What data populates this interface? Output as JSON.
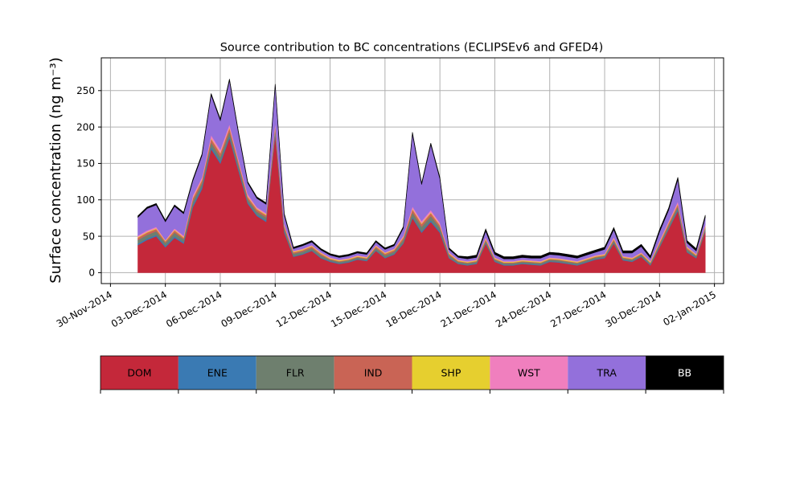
{
  "chart_data": {
    "type": "area",
    "stacked": true,
    "title": "Source contribution to BC concentrations (ECLIPSEv6 and GFED4)",
    "xlabel": "",
    "ylabel": "Surface concentration (ng m⁻³)",
    "ylim": [
      -15,
      295
    ],
    "xlim": [
      "2014-11-29T12:00",
      "2015-01-02T12:00"
    ],
    "grid": true,
    "yticks": [
      0,
      50,
      100,
      150,
      200,
      250
    ],
    "xticks": [
      "30-Nov-2014",
      "03-Dec-2014",
      "06-Dec-2014",
      "09-Dec-2014",
      "12-Dec-2014",
      "15-Dec-2014",
      "18-Dec-2014",
      "21-Dec-2014",
      "24-Dec-2014",
      "27-Dec-2014",
      "30-Dec-2014",
      "02-Jan-2015"
    ],
    "x": [
      "2014-12-01T12:00",
      "2014-12-02T00:00",
      "2014-12-02T12:00",
      "2014-12-03T00:00",
      "2014-12-03T12:00",
      "2014-12-04T00:00",
      "2014-12-04T12:00",
      "2014-12-05T00:00",
      "2014-12-05T12:00",
      "2014-12-06T00:00",
      "2014-12-06T12:00",
      "2014-12-07T00:00",
      "2014-12-07T12:00",
      "2014-12-08T00:00",
      "2014-12-08T12:00",
      "2014-12-09T00:00",
      "2014-12-09T12:00",
      "2014-12-10T00:00",
      "2014-12-10T12:00",
      "2014-12-11T00:00",
      "2014-12-11T12:00",
      "2014-12-12T00:00",
      "2014-12-12T12:00",
      "2014-12-13T00:00",
      "2014-12-13T12:00",
      "2014-12-14T00:00",
      "2014-12-14T12:00",
      "2014-12-15T00:00",
      "2014-12-15T12:00",
      "2014-12-16T00:00",
      "2014-12-16T12:00",
      "2014-12-17T00:00",
      "2014-12-17T12:00",
      "2014-12-18T00:00",
      "2014-12-18T12:00",
      "2014-12-19T00:00",
      "2014-12-19T12:00",
      "2014-12-20T00:00",
      "2014-12-20T12:00",
      "2014-12-21T00:00",
      "2014-12-21T12:00",
      "2014-12-22T00:00",
      "2014-12-22T12:00",
      "2014-12-23T00:00",
      "2014-12-23T12:00",
      "2014-12-24T00:00",
      "2014-12-24T12:00",
      "2014-12-25T00:00",
      "2014-12-25T12:00",
      "2014-12-26T00:00",
      "2014-12-26T12:00",
      "2014-12-27T00:00",
      "2014-12-27T12:00",
      "2014-12-28T00:00",
      "2014-12-28T12:00",
      "2014-12-29T00:00",
      "2014-12-29T12:00",
      "2014-12-30T00:00",
      "2014-12-30T12:00",
      "2014-12-31T00:00",
      "2014-12-31T12:00",
      "2015-01-01T00:00",
      "2015-01-01T12:00"
    ],
    "series": [
      {
        "name": "DOM",
        "color": "#c4283a",
        "values": [
          38,
          45,
          50,
          35,
          48,
          40,
          90,
          115,
          170,
          150,
          185,
          140,
          95,
          78,
          70,
          190,
          55,
          22,
          25,
          30,
          20,
          15,
          12,
          14,
          18,
          16,
          30,
          20,
          25,
          40,
          75,
          55,
          70,
          55,
          20,
          12,
          10,
          12,
          40,
          15,
          10,
          10,
          12,
          11,
          10,
          15,
          14,
          12,
          10,
          14,
          18,
          20,
          40,
          17,
          15,
          22,
          10,
          35,
          60,
          85,
          28,
          20,
          57
        ]
      },
      {
        "name": "ENE",
        "color": "#3a7ab3",
        "values": [
          2,
          2,
          2,
          2,
          2,
          2,
          3,
          3,
          3,
          3,
          3,
          3,
          2,
          2,
          2,
          3,
          2,
          1,
          1,
          1,
          1,
          1,
          1,
          1,
          1,
          1,
          1,
          1,
          1,
          1,
          2,
          2,
          2,
          2,
          1,
          1,
          1,
          1,
          1,
          1,
          1,
          1,
          1,
          1,
          1,
          1,
          1,
          1,
          1,
          1,
          1,
          1,
          1,
          1,
          1,
          1,
          1,
          1,
          1,
          2,
          1,
          1,
          1
        ]
      },
      {
        "name": "FLR",
        "color": "#6e7f6e",
        "values": [
          5,
          5,
          5,
          4,
          5,
          4,
          5,
          5,
          6,
          6,
          6,
          5,
          4,
          4,
          4,
          5,
          4,
          3,
          3,
          3,
          3,
          2,
          2,
          2,
          2,
          2,
          3,
          3,
          3,
          4,
          6,
          6,
          6,
          5,
          3,
          2,
          2,
          2,
          3,
          2,
          2,
          2,
          2,
          2,
          2,
          2,
          2,
          2,
          2,
          2,
          2,
          2,
          3,
          2,
          2,
          2,
          2,
          3,
          4,
          4,
          3,
          2,
          3
        ]
      },
      {
        "name": "IND",
        "color": "#c96455",
        "values": [
          3,
          3,
          3,
          2,
          3,
          2,
          4,
          4,
          5,
          5,
          5,
          4,
          3,
          3,
          3,
          4,
          3,
          2,
          2,
          2,
          2,
          1,
          1,
          1,
          1,
          1,
          2,
          2,
          2,
          3,
          4,
          4,
          4,
          3,
          2,
          1,
          1,
          1,
          2,
          1,
          1,
          1,
          1,
          1,
          1,
          1,
          1,
          1,
          1,
          1,
          1,
          1,
          2,
          1,
          1,
          1,
          1,
          2,
          3,
          3,
          2,
          1,
          2
        ]
      },
      {
        "name": "SHP",
        "color": "#e6cf2f",
        "values": [
          1,
          1,
          1,
          1,
          1,
          1,
          1,
          1,
          1,
          1,
          1,
          1,
          1,
          1,
          1,
          1,
          1,
          1,
          1,
          1,
          1,
          1,
          1,
          1,
          1,
          1,
          1,
          1,
          1,
          1,
          1,
          1,
          1,
          1,
          1,
          1,
          1,
          1,
          1,
          1,
          1,
          1,
          1,
          1,
          1,
          1,
          1,
          1,
          1,
          1,
          1,
          1,
          1,
          1,
          1,
          1,
          1,
          1,
          1,
          1,
          1,
          1,
          1
        ]
      },
      {
        "name": "WST",
        "color": "#f07fbe",
        "values": [
          2,
          2,
          2,
          1,
          2,
          2,
          3,
          3,
          4,
          4,
          4,
          3,
          3,
          2,
          2,
          4,
          2,
          1,
          1,
          1,
          1,
          1,
          1,
          1,
          1,
          1,
          1,
          1,
          1,
          2,
          3,
          3,
          3,
          3,
          1,
          1,
          1,
          1,
          2,
          1,
          1,
          1,
          1,
          1,
          1,
          1,
          1,
          1,
          1,
          1,
          1,
          1,
          2,
          1,
          1,
          1,
          1,
          2,
          2,
          3,
          1,
          1,
          2
        ]
      },
      {
        "name": "TRA",
        "color": "#9370db",
        "values": [
          25,
          30,
          30,
          25,
          30,
          30,
          20,
          30,
          55,
          40,
          60,
          35,
          15,
          12,
          12,
          50,
          12,
          3,
          4,
          4,
          3,
          3,
          3,
          3,
          3,
          3,
          4,
          4,
          4,
          10,
          100,
          50,
          90,
          60,
          4,
          3,
          3,
          3,
          8,
          4,
          3,
          3,
          3,
          3,
          4,
          4,
          4,
          4,
          4,
          4,
          4,
          6,
          10,
          4,
          6,
          8,
          4,
          12,
          15,
          30,
          5,
          4,
          10
        ]
      },
      {
        "name": "BB",
        "color": "#000000",
        "values": [
          2,
          2,
          2,
          2,
          2,
          2,
          2,
          2,
          2,
          2,
          2,
          2,
          2,
          2,
          2,
          2,
          2,
          2,
          2,
          2,
          2,
          2,
          2,
          2,
          2,
          2,
          2,
          2,
          2,
          2,
          2,
          2,
          2,
          2,
          2,
          2,
          3,
          3,
          3,
          3,
          3,
          3,
          3,
          3,
          3,
          3,
          3,
          3,
          3,
          3,
          3,
          3,
          3,
          3,
          3,
          3,
          3,
          3,
          3,
          3,
          3,
          3,
          3
        ]
      }
    ]
  }
}
